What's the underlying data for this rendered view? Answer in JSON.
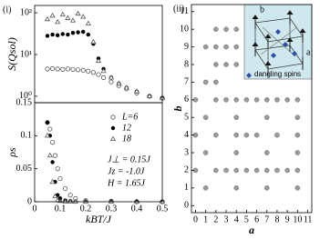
{
  "chart_data": [
    {
      "type": "scatter",
      "panel": "(i)",
      "ylabel": "S(Qsol)",
      "log_y": true,
      "xlim": [
        0,
        0.5
      ],
      "ylim": [
        0.7,
        150
      ],
      "yticks": [
        {
          "value": 1,
          "label": "10⁰"
        },
        {
          "value": 10,
          "label": "10¹"
        },
        {
          "value": 100,
          "label": "10²"
        }
      ],
      "x": [
        0.05,
        0.07,
        0.09,
        0.11,
        0.13,
        0.15,
        0.17,
        0.19,
        0.21,
        0.23,
        0.25,
        0.27,
        0.3,
        0.33,
        0.36,
        0.4,
        0.45,
        0.5
      ],
      "series": [
        {
          "marker": "open-circle",
          "color": "#555555",
          "values": [
            4.5,
            4.6,
            4.5,
            4.4,
            4.5,
            4.4,
            4.3,
            4.2,
            4.0,
            3.7,
            3.3,
            2.8,
            2.2,
            1.8,
            1.5,
            1.2,
            1.0,
            0.9
          ]
        },
        {
          "marker": "filled-circle",
          "color": "#000000",
          "values": [
            28,
            30,
            29,
            31,
            30,
            33,
            34,
            35,
            30,
            18,
            8,
            4.5,
            2.8,
            2.0,
            1.6,
            1.3,
            1.0,
            0.9
          ]
        },
        {
          "marker": "open-triangle",
          "color": "#555555",
          "values": [
            70,
            85,
            60,
            90,
            75,
            65,
            95,
            80,
            55,
            20,
            7,
            4,
            2.8,
            2.0,
            1.6,
            1.3,
            1.0,
            0.9
          ]
        }
      ]
    },
    {
      "type": "scatter",
      "ylabel": "ρs",
      "xlabel": "kBT/J",
      "xlim": [
        0,
        0.5
      ],
      "ylim": [
        0,
        0.15
      ],
      "xticks": [
        0,
        0.1,
        0.2,
        0.3,
        0.4,
        0.5
      ],
      "yticks": [
        0,
        0.05,
        0.1,
        0.15
      ],
      "x": [
        0.05,
        0.06,
        0.07,
        0.08,
        0.09,
        0.1,
        0.12,
        0.14,
        0.16,
        0.2,
        0.3,
        0.4,
        0.5
      ],
      "series": [
        {
          "name": "L=6",
          "marker": "open-circle",
          "color": "#555555",
          "values": [
            0.12,
            0.11,
            0.09,
            0.07,
            0.05,
            0.035,
            0.02,
            0.01,
            0.005,
            0.002,
            0.001,
            0,
            0
          ]
        },
        {
          "name": "12",
          "marker": "filled-circle",
          "color": "#000000",
          "values": [
            0.12,
            0.1,
            0.06,
            0.03,
            0.01,
            0.005,
            0.002,
            0.001,
            0,
            0,
            0,
            0,
            0
          ]
        },
        {
          "name": "18",
          "marker": "open-triangle",
          "color": "#555555",
          "values": [
            0.1,
            0.07,
            0.03,
            0.008,
            0.002,
            0.001,
            0,
            0,
            0,
            0,
            0,
            0,
            0
          ]
        }
      ],
      "annotations": [
        "J⊥ = 0.15J",
        "Jz = -1.0J",
        "H = 1.65J"
      ]
    },
    {
      "type": "scatter",
      "panel": "(ii)",
      "xlabel": "a",
      "ylabel": "b",
      "xlim": [
        -0.4,
        11.4
      ],
      "ylim": [
        -0.4,
        11.4
      ],
      "xticks": [
        0,
        1,
        2,
        3,
        4,
        5,
        6,
        7,
        8,
        9,
        10,
        11
      ],
      "yticks": [
        0,
        1,
        2,
        3,
        4,
        5,
        6,
        7,
        8,
        9,
        10,
        11
      ],
      "inset_labels": [
        "b",
        "a"
      ],
      "inset_legend": "dangling spins",
      "series": [
        {
          "marker": "gray-circle",
          "color": "#999999",
          "x": [
            2,
            3,
            4,
            1,
            2,
            3,
            4,
            2,
            3,
            4,
            1,
            2,
            0,
            2,
            3,
            4,
            5,
            6,
            7,
            8,
            9,
            10,
            1,
            4,
            7,
            10,
            0,
            2,
            4,
            5,
            6,
            8,
            10,
            1,
            4,
            7,
            10,
            0,
            2,
            3,
            4,
            5,
            6,
            7,
            8,
            9,
            10,
            1,
            4,
            7,
            10
          ],
          "values": [
            10,
            10,
            10,
            9,
            9,
            9,
            9,
            8,
            8,
            8,
            7,
            7,
            6,
            6,
            6,
            6,
            6,
            6,
            6,
            6,
            6,
            6,
            5,
            5,
            5,
            5,
            4,
            4,
            4,
            4,
            4,
            4,
            4,
            3,
            3,
            3,
            3,
            2,
            2,
            2,
            2,
            2,
            2,
            2,
            2,
            2,
            2,
            1,
            1,
            1,
            1
          ]
        }
      ]
    }
  ]
}
